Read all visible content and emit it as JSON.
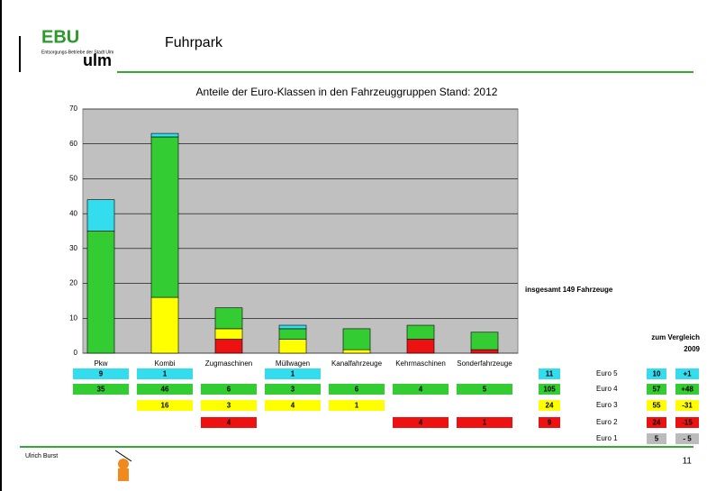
{
  "header": {
    "logo_top": "EBU",
    "logo_sub": "Entsorgungs-Betriebe der Stadt Ulm",
    "logo_city": "ulm",
    "title": "Fuhrpark"
  },
  "chart_data": {
    "type": "stacked_bar",
    "title": "Anteile der Euro-Klassen in den Fahrzeuggruppen Stand: 2012",
    "categories": [
      "Pkw",
      "Kombi",
      "Zugmaschinen",
      "Müllwagen",
      "Kanalfahrzeuge",
      "Kehrmaschinen",
      "Sonderfahrzeuge"
    ],
    "series": [
      {
        "name": "Euro 2",
        "color": "#ee1111",
        "values": [
          null,
          null,
          4,
          null,
          null,
          4,
          1
        ],
        "total": 9,
        "y2009": 24,
        "change": "-15"
      },
      {
        "name": "Euro 3",
        "color": "#ffff00",
        "values": [
          null,
          16,
          3,
          4,
          1,
          null,
          null
        ],
        "total": 24,
        "y2009": 55,
        "change": "-31"
      },
      {
        "name": "Euro 4",
        "color": "#33cc33",
        "values": [
          35,
          46,
          6,
          3,
          6,
          4,
          5
        ],
        "total": 105,
        "y2009": 57,
        "change": "+48"
      },
      {
        "name": "Euro 5",
        "color": "#33ddee",
        "values": [
          9,
          1,
          null,
          1,
          null,
          null,
          null
        ],
        "total": 11,
        "y2009": 10,
        "change": "+1"
      }
    ],
    "ylim": [
      0,
      70
    ],
    "yticks": [
      0,
      10,
      20,
      30,
      40,
      50,
      60,
      70
    ],
    "grid": true,
    "plot_color": "#c0c0c0"
  },
  "extra_row": {
    "name": "Euro 1",
    "color": "#bbbbbb",
    "y2009": 5,
    "change": "- 5"
  },
  "summary": "insgesamt  149 Fahrzeuge",
  "comparison": {
    "label": "zum Vergleich",
    "year": "2009"
  },
  "footer": {
    "author": "Ulrich Burst",
    "page": "11"
  }
}
